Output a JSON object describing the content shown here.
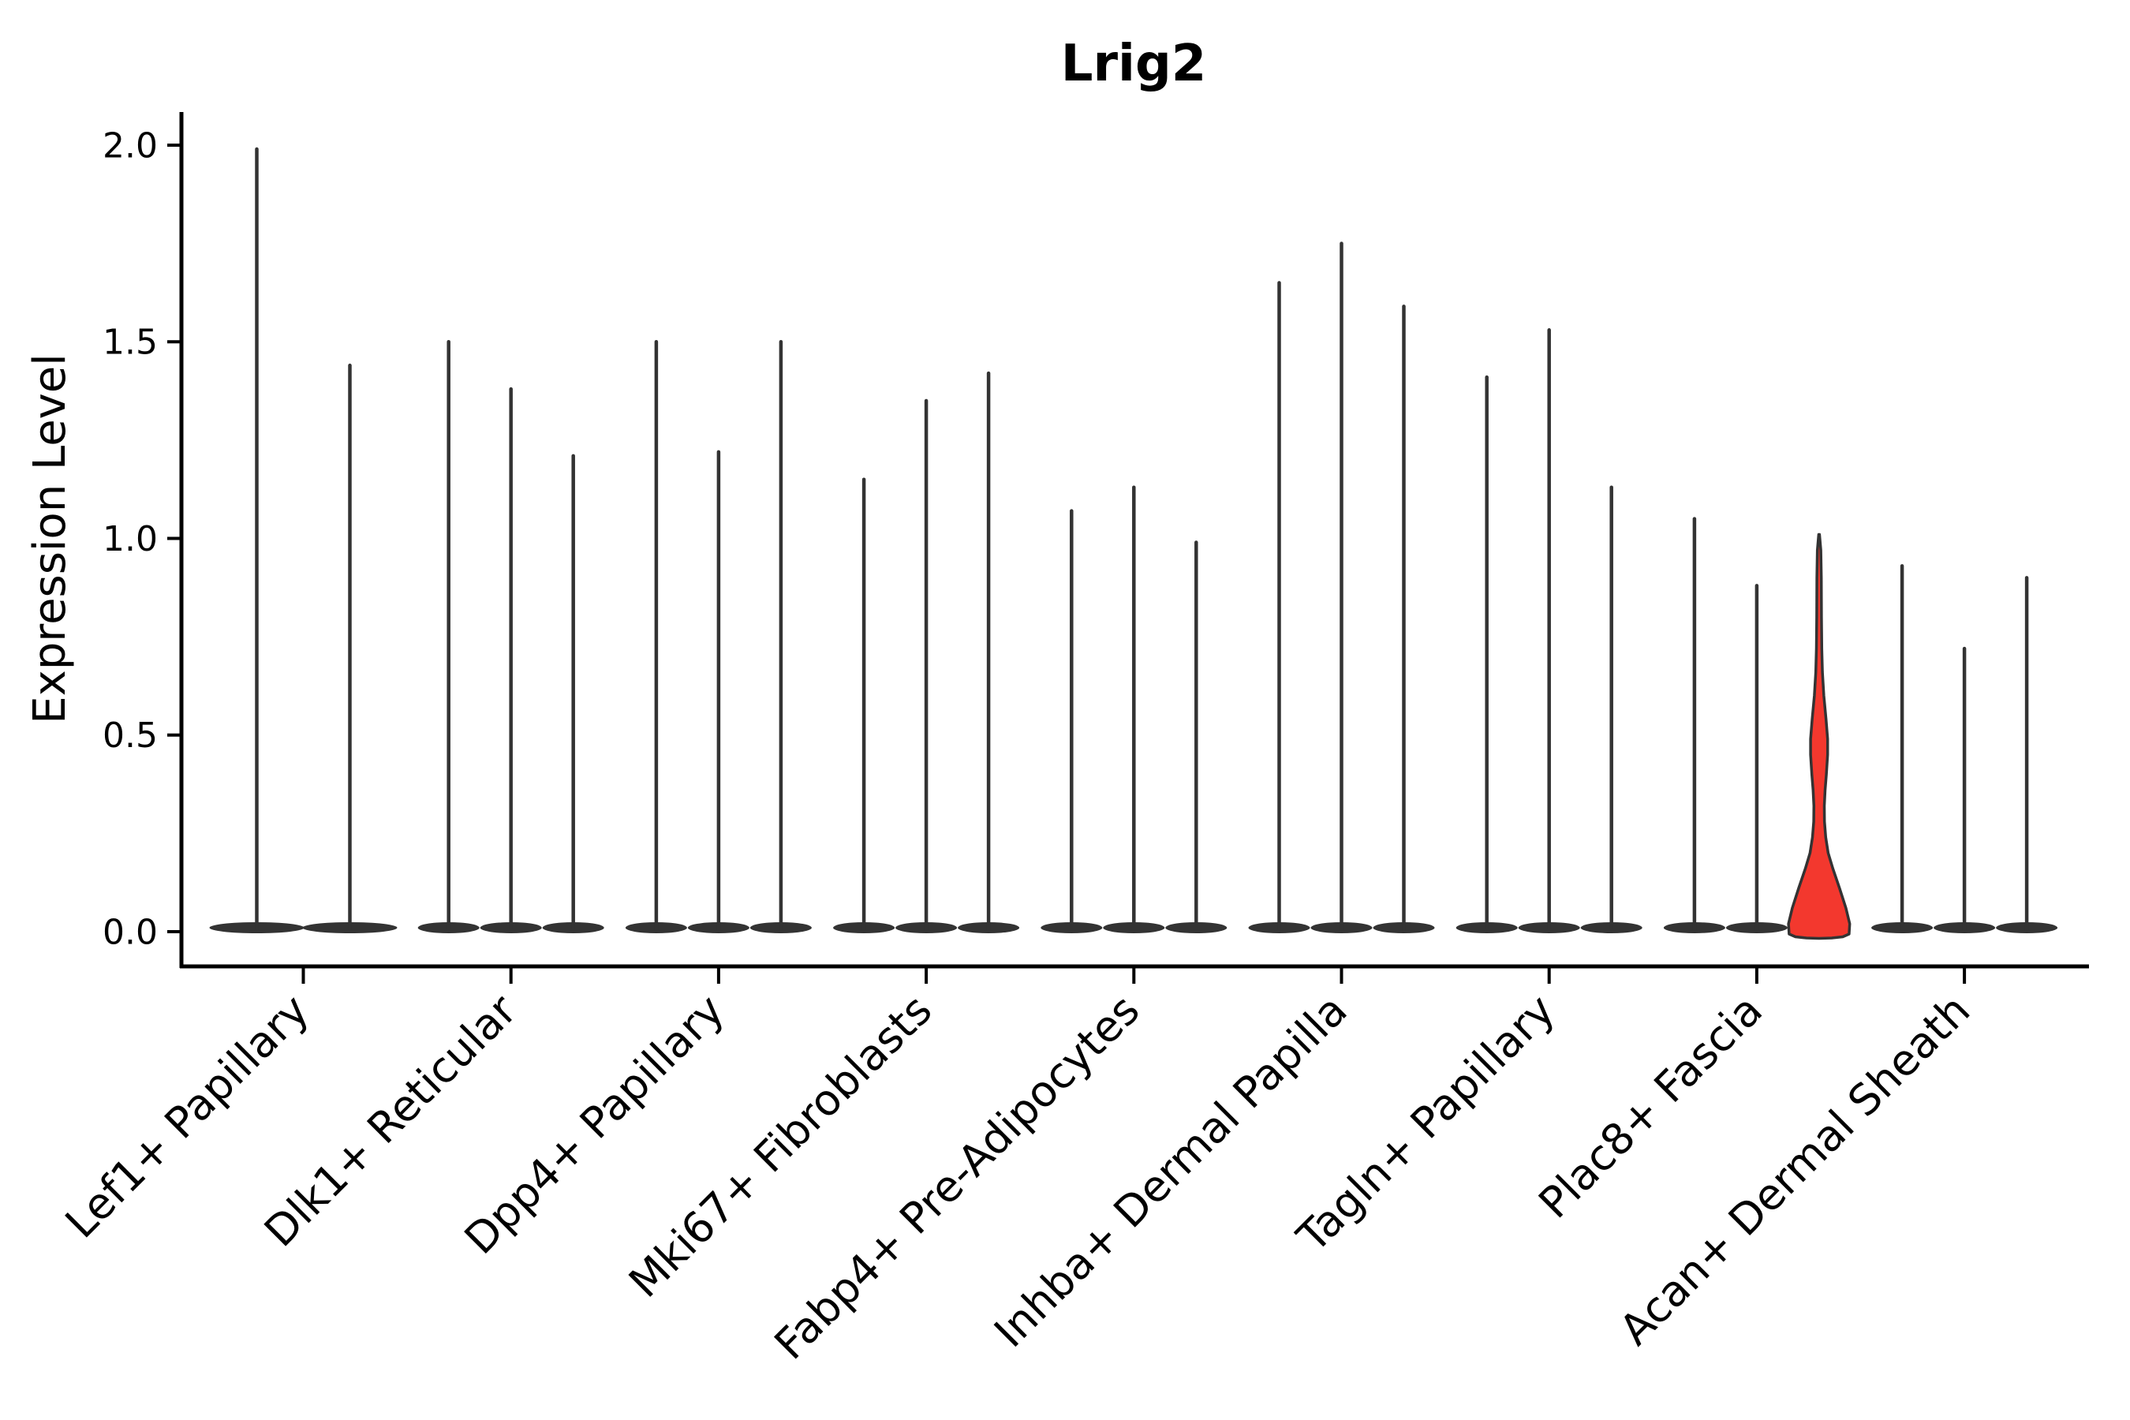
{
  "chart_data": {
    "type": "violin",
    "title": "Lrig2",
    "ylabel": "Expression Level",
    "xlabel": "",
    "grid": false,
    "legend": "none",
    "y_axis": {
      "ticks": [
        {
          "label": "0.0",
          "value": 0.0
        },
        {
          "label": "0.5",
          "value": 0.5
        },
        {
          "label": "1.0",
          "value": 1.0
        },
        {
          "label": "1.5",
          "value": 1.5
        },
        {
          "label": "2.0",
          "value": 2.0
        }
      ],
      "range_shown": [
        -0.09,
        2.09
      ]
    },
    "categories": [
      "Lef1+ Papillary",
      "Dlk1+ Reticular",
      "Dpp4+ Papillary",
      "Mki67+ Fibroblasts",
      "Fabp4+ Pre-Adipocytes",
      "Inhba+ Dermal Papilla",
      "Tagln+ Papillary",
      "Plac8+ Fascia",
      "Acan+ Dermal Sheath"
    ],
    "groups": [
      {
        "category": "Lef1+ Papillary",
        "violins": [
          {
            "peak_expression": 1.99
          },
          {
            "peak_expression": 1.44
          }
        ]
      },
      {
        "category": "Dlk1+ Reticular",
        "violins": [
          {
            "peak_expression": 1.5
          },
          {
            "peak_expression": 1.38
          },
          {
            "peak_expression": 1.21
          }
        ]
      },
      {
        "category": "Dpp4+ Papillary",
        "violins": [
          {
            "peak_expression": 1.5
          },
          {
            "peak_expression": 1.22
          },
          {
            "peak_expression": 1.5
          }
        ]
      },
      {
        "category": "Mki67+ Fibroblasts",
        "violins": [
          {
            "peak_expression": 1.15
          },
          {
            "peak_expression": 1.35
          },
          {
            "peak_expression": 1.42
          }
        ]
      },
      {
        "category": "Fabp4+ Pre-Adipocytes",
        "violins": [
          {
            "peak_expression": 1.07
          },
          {
            "peak_expression": 1.13
          },
          {
            "peak_expression": 0.99
          }
        ]
      },
      {
        "category": "Inhba+ Dermal Papilla",
        "violins": [
          {
            "peak_expression": 1.65
          },
          {
            "peak_expression": 1.75
          },
          {
            "peak_expression": 1.59
          }
        ]
      },
      {
        "category": "Tagln+ Papillary",
        "violins": [
          {
            "peak_expression": 1.41
          },
          {
            "peak_expression": 1.53
          },
          {
            "peak_expression": 1.13
          }
        ]
      },
      {
        "category": "Plac8+ Fascia",
        "violins": [
          {
            "peak_expression": 1.05
          },
          {
            "peak_expression": 0.88
          },
          {
            "peak_expression": 1.01,
            "highlight": true
          }
        ]
      },
      {
        "category": "Acan+ Dermal Sheath",
        "violins": [
          {
            "peak_expression": 0.93
          },
          {
            "peak_expression": 0.72
          },
          {
            "peak_expression": 0.9
          }
        ]
      }
    ],
    "highlighted_violin": {
      "category": "Plac8+ Fascia",
      "position_in_group": 3,
      "peak_expression": 1.01,
      "description": "only filled (red) violin; all others collapse to thin lines"
    },
    "highlight_profile": [
      [
        1.01,
        0.5
      ],
      [
        0.97,
        2.2
      ],
      [
        0.9,
        2.8
      ],
      [
        0.8,
        3.0
      ],
      [
        0.72,
        3.4
      ],
      [
        0.66,
        4.2
      ],
      [
        0.6,
        6.0
      ],
      [
        0.54,
        8.8
      ],
      [
        0.49,
        10.8
      ],
      [
        0.45,
        10.8
      ],
      [
        0.4,
        9.2
      ],
      [
        0.36,
        7.6
      ],
      [
        0.32,
        6.6
      ],
      [
        0.28,
        6.8
      ],
      [
        0.24,
        8.4
      ],
      [
        0.2,
        11.5
      ],
      [
        0.16,
        17.5
      ],
      [
        0.11,
        26.0
      ],
      [
        0.06,
        34.0
      ],
      [
        0.02,
        38.8
      ],
      [
        -0.006,
        38.0
      ],
      [
        -0.013,
        30.0
      ],
      [
        -0.016,
        16.0
      ],
      [
        -0.017,
        0.0
      ]
    ],
    "colors": {
      "violin_line": "#333333",
      "highlight_fill": "#F3382E",
      "axis": "#000000"
    }
  }
}
